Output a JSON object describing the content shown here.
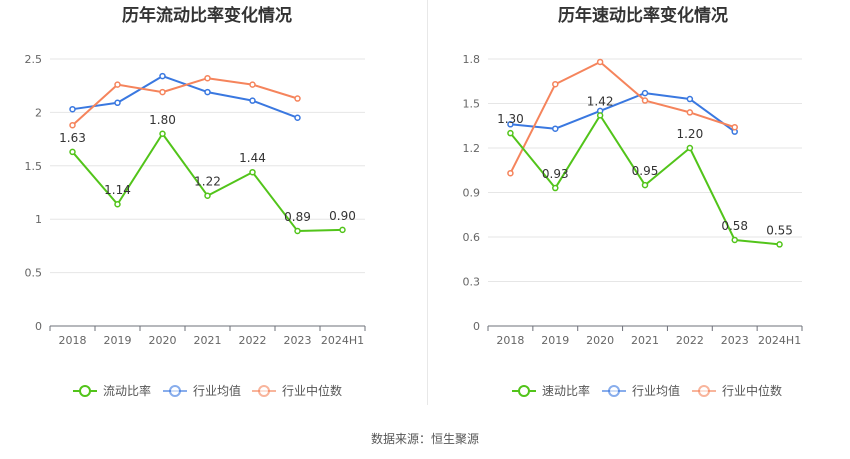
{
  "chart_data": [
    {
      "type": "line",
      "title": "历年流动比率变化情况",
      "categories": [
        "2018",
        "2019",
        "2020",
        "2021",
        "2022",
        "2023",
        "2024H1"
      ],
      "ylim": [
        0,
        2.5
      ],
      "yticks": [
        "0",
        "0.5",
        "1",
        "1.5",
        "2",
        "2.5"
      ],
      "grid": true,
      "legend_position": "bottom",
      "series": [
        {
          "name": "流动比率",
          "color": "#52c41a",
          "values": [
            1.63,
            1.14,
            1.8,
            1.22,
            1.44,
            0.89,
            0.9
          ],
          "labels": [
            "1.63",
            "1.14",
            "1.80",
            "1.22",
            "1.44",
            "0.89",
            "0.90"
          ]
        },
        {
          "name": "行业均值",
          "color": "#3a78e0",
          "values": [
            2.03,
            2.09,
            2.34,
            2.19,
            2.11,
            1.95,
            null
          ]
        },
        {
          "name": "行业中位数",
          "color": "#f5845c",
          "values": [
            1.88,
            2.26,
            2.19,
            2.32,
            2.26,
            2.13,
            null
          ]
        }
      ]
    },
    {
      "type": "line",
      "title": "历年速动比率变化情况",
      "categories": [
        "2018",
        "2019",
        "2020",
        "2021",
        "2022",
        "2023",
        "2024H1"
      ],
      "ylim": [
        0,
        1.8
      ],
      "yticks": [
        "0",
        "0.3",
        "0.6",
        "0.9",
        "1.2",
        "1.5",
        "1.8"
      ],
      "grid": true,
      "legend_position": "bottom",
      "series": [
        {
          "name": "速动比率",
          "color": "#52c41a",
          "values": [
            1.3,
            0.93,
            1.42,
            0.95,
            1.2,
            0.58,
            0.55
          ],
          "labels": [
            "1.30",
            "0.93",
            "1.42",
            "0.95",
            "1.20",
            "0.58",
            "0.55"
          ]
        },
        {
          "name": "行业均值",
          "color": "#3a78e0",
          "values": [
            1.36,
            1.33,
            1.45,
            1.57,
            1.53,
            1.31,
            null
          ]
        },
        {
          "name": "行业中位数",
          "color": "#f5845c",
          "values": [
            1.03,
            1.63,
            1.78,
            1.52,
            1.44,
            1.34,
            null
          ]
        }
      ]
    }
  ],
  "footer": "数据来源：恒生聚源"
}
